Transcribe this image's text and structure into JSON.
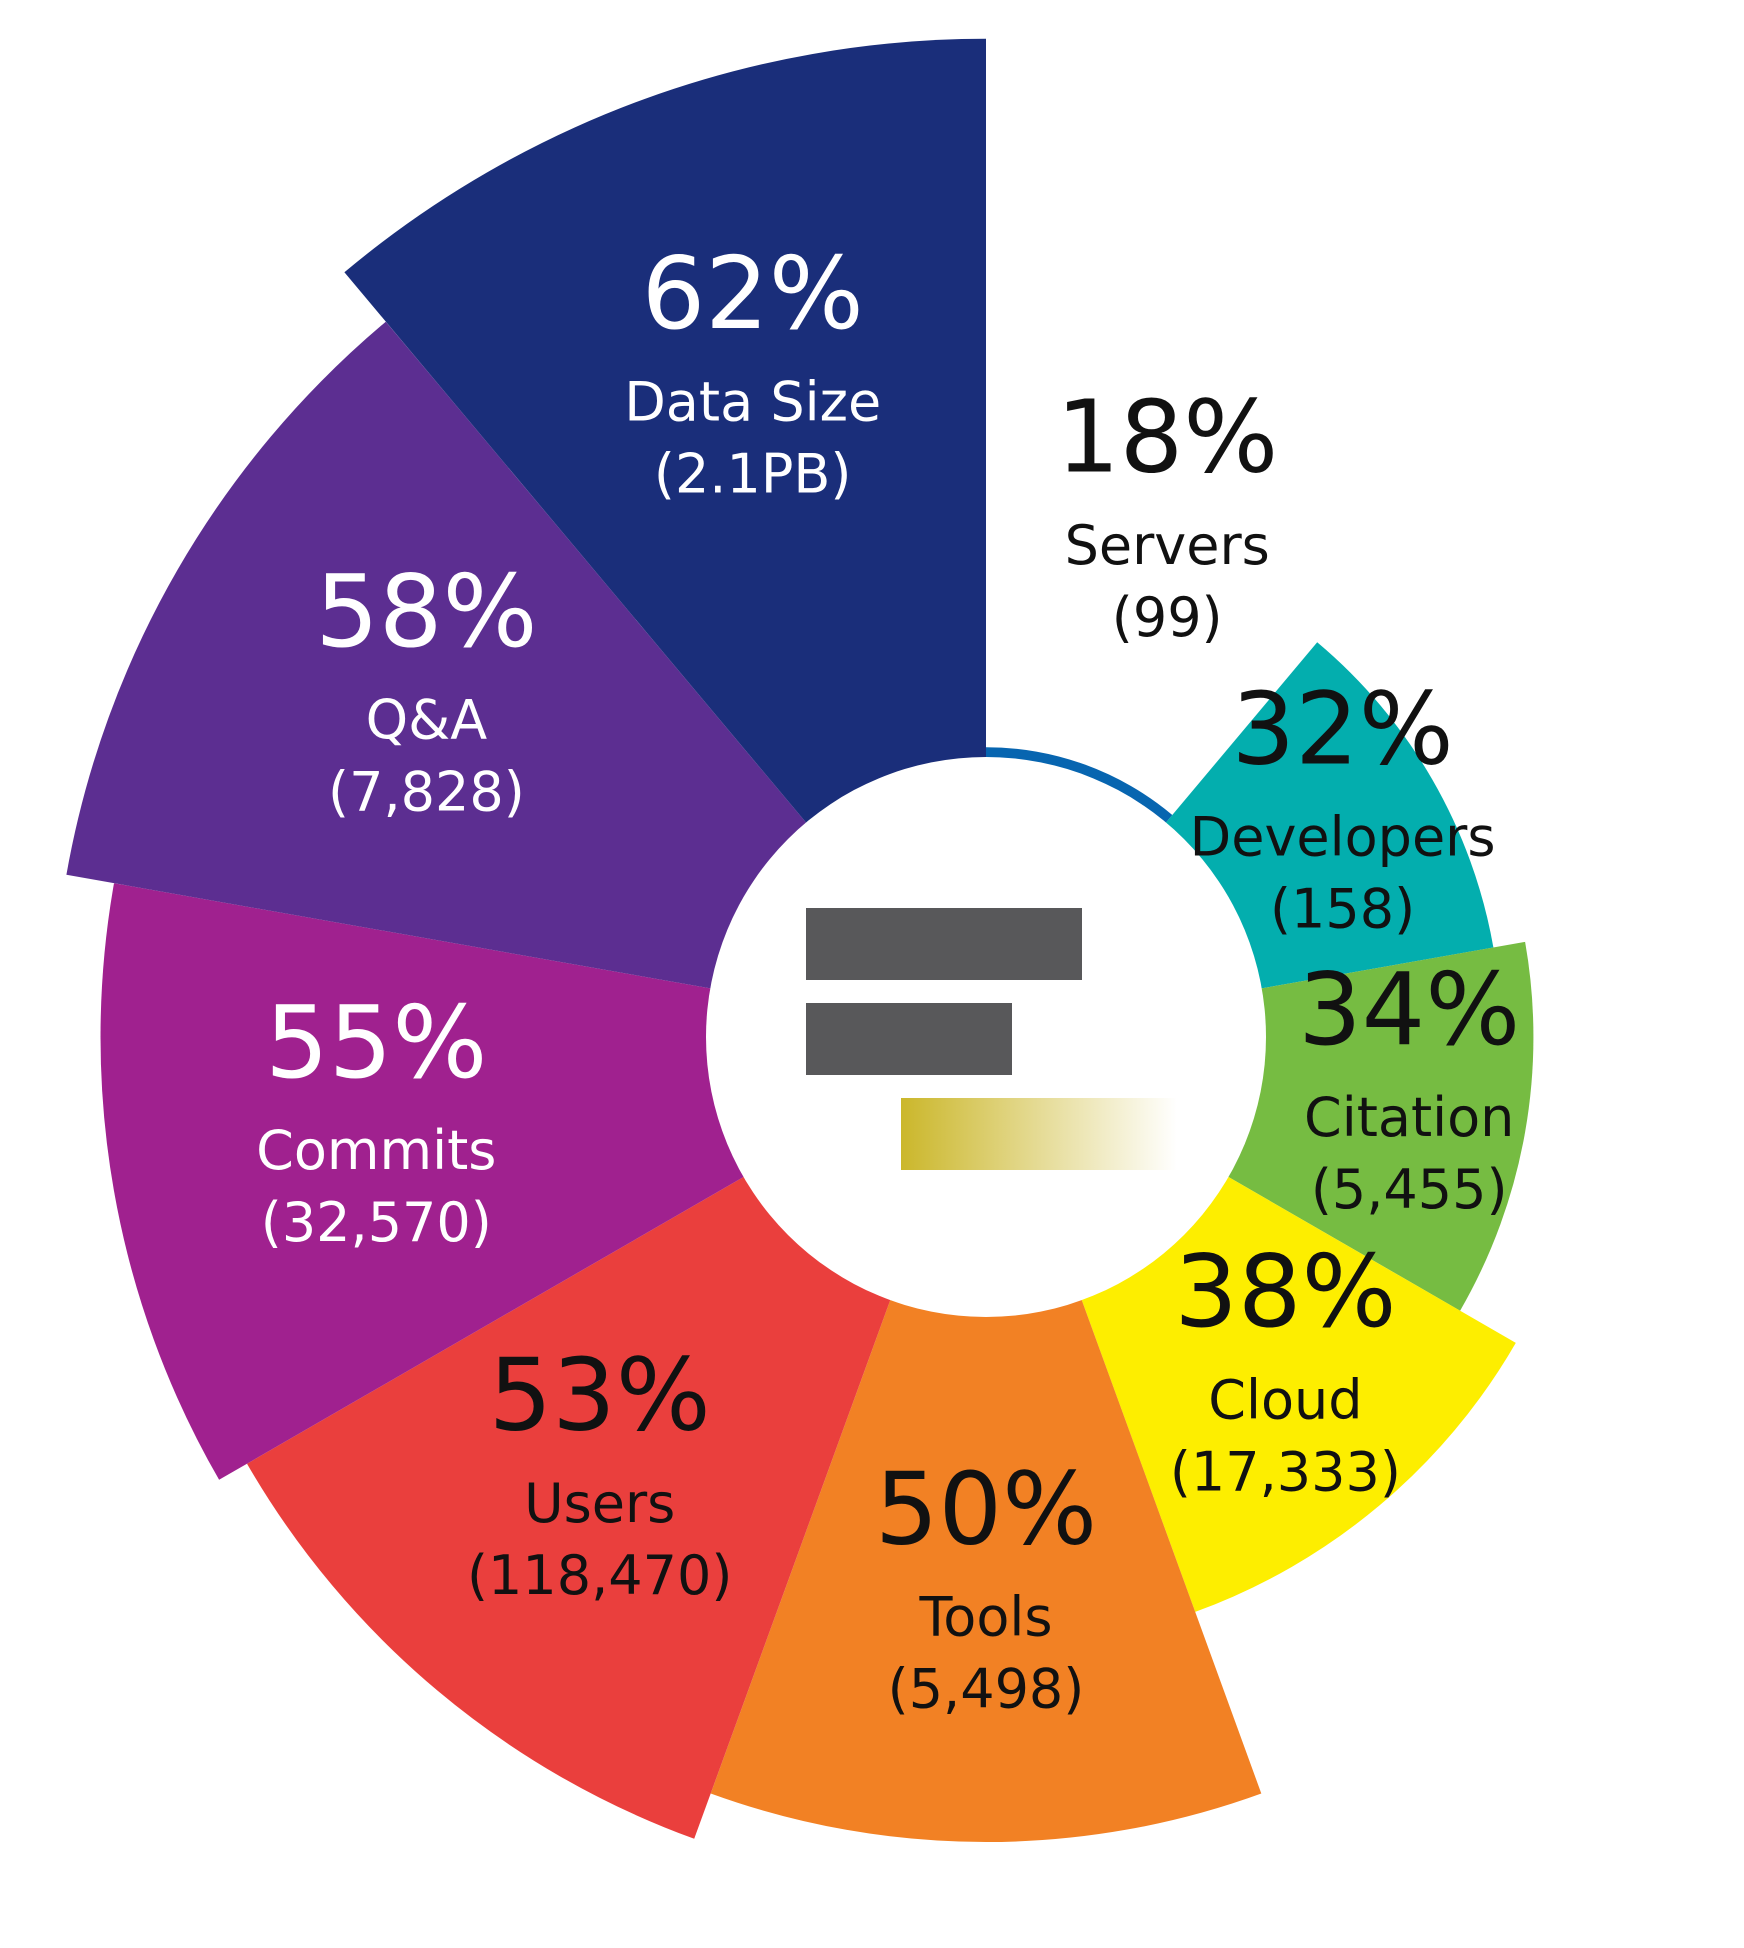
{
  "chart_data": {
    "type": "polar-area",
    "segments": [
      {
        "percent": "18%",
        "label": "Servers",
        "count": "(99)",
        "value": 18,
        "color": "#0765b0",
        "text_color": "#111111",
        "text_position": "outside"
      },
      {
        "percent": "32%",
        "label": "Developers",
        "count": "(158)",
        "value": 32,
        "color": "#03aeae",
        "text_color": "#111111",
        "text_position": "inside"
      },
      {
        "percent": "34%",
        "label": "Citation",
        "count": "(5,455)",
        "value": 34,
        "color": "#76bc42",
        "text_color": "#111111",
        "text_position": "inside"
      },
      {
        "percent": "38%",
        "label": "Cloud",
        "count": "(17,333)",
        "value": 38,
        "color": "#fdee00",
        "text_color": "#111111",
        "text_position": "inside"
      },
      {
        "percent": "50%",
        "label": "Tools",
        "count": "(5,498)",
        "value": 50,
        "color": "#f28124",
        "text_color": "#111111",
        "text_position": "inside"
      },
      {
        "percent": "53%",
        "label": "Users",
        "count": "(118,470)",
        "value": 53,
        "color": "#ea3f3d",
        "text_color": "#111111",
        "text_position": "inside"
      },
      {
        "percent": "55%",
        "label": "Commits",
        "count": "(32,570)",
        "value": 55,
        "color": "#a0218f",
        "text_color": "#ffffff",
        "text_position": "inside"
      },
      {
        "percent": "58%",
        "label": "Q&A",
        "count": "(7,828)",
        "value": 58,
        "color": "#5c2e91",
        "text_color": "#ffffff",
        "text_position": "inside"
      },
      {
        "percent": "62%",
        "label": "Data Size",
        "count": "(2.1PB)",
        "value": 62,
        "color": "#1a2e7a",
        "text_color": "#ffffff",
        "text_position": "inside"
      }
    ]
  },
  "center_logo": {
    "name": "logo-bars-icon",
    "bar_color": "#58585a",
    "accent_color": "#cbb72b"
  }
}
